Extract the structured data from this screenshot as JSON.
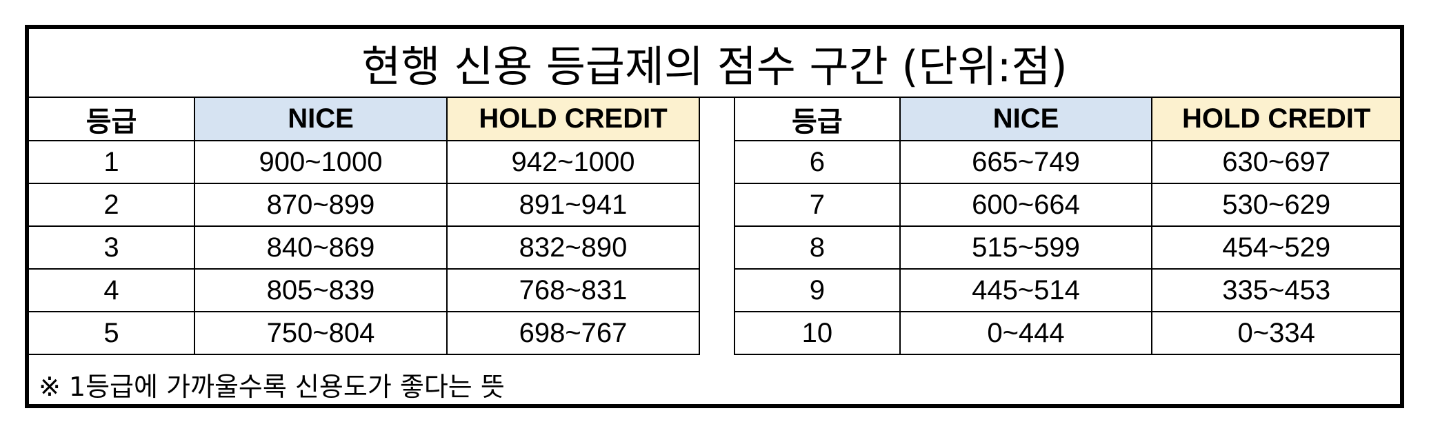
{
  "title": "현행 신용 등급제의 점수 구간 (단위:점)",
  "headers": {
    "grade": "등급",
    "nice": "NICE",
    "hold_credit": "HOLD CREDIT"
  },
  "rows_left": [
    {
      "grade": "1",
      "nice": "900~1000",
      "hold_credit": "942~1000"
    },
    {
      "grade": "2",
      "nice": "870~899",
      "hold_credit": "891~941"
    },
    {
      "grade": "3",
      "nice": "840~869",
      "hold_credit": "832~890"
    },
    {
      "grade": "4",
      "nice": "805~839",
      "hold_credit": "768~831"
    },
    {
      "grade": "5",
      "nice": "750~804",
      "hold_credit": "698~767"
    }
  ],
  "rows_right": [
    {
      "grade": "6",
      "nice": "665~749",
      "hold_credit": "630~697"
    },
    {
      "grade": "7",
      "nice": "600~664",
      "hold_credit": "530~629"
    },
    {
      "grade": "8",
      "nice": "515~599",
      "hold_credit": "454~529"
    },
    {
      "grade": "9",
      "nice": "445~514",
      "hold_credit": "335~453"
    },
    {
      "grade": "10",
      "nice": "0~444",
      "hold_credit": "0~334"
    }
  ],
  "footnote": "※ 1등급에 가까울수록 신용도가 좋다는 뜻",
  "colors": {
    "nice_header": "#d6e3f2",
    "hold_credit_header": "#fcf1cf",
    "border": "#000000"
  }
}
